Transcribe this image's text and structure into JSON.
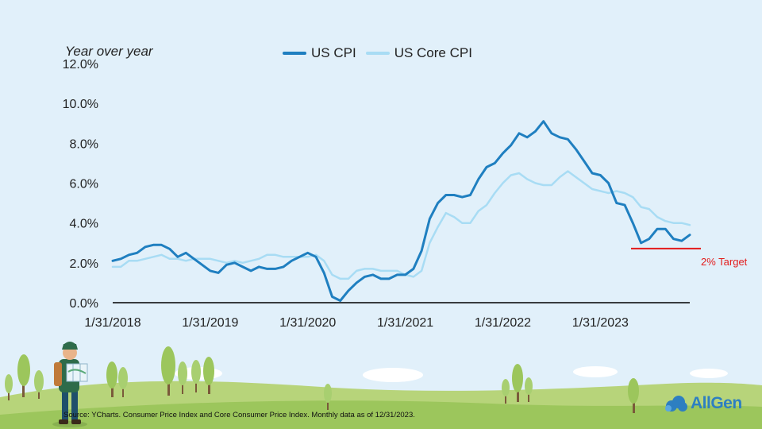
{
  "chart_data": {
    "type": "line",
    "y_axis_title": "Year over year",
    "ylim": [
      0,
      12
    ],
    "yticks": [
      "0.0%",
      "2.0%",
      "4.0%",
      "6.0%",
      "8.0%",
      "10.0%",
      "12.0%"
    ],
    "xticks": [
      "1/31/2018",
      "1/31/2019",
      "1/31/2020",
      "1/31/2021",
      "1/31/2022",
      "1/31/2023"
    ],
    "x_start": "2018-01",
    "x_end": "2023-12",
    "grid": false,
    "legend_position": "top",
    "series": [
      {
        "name": "US CPI",
        "color": "#1f7fc0",
        "values": [
          2.1,
          2.2,
          2.4,
          2.5,
          2.8,
          2.9,
          2.9,
          2.7,
          2.3,
          2.5,
          2.2,
          1.9,
          1.6,
          1.5,
          1.9,
          2.0,
          1.8,
          1.6,
          1.8,
          1.7,
          1.7,
          1.8,
          2.1,
          2.3,
          2.5,
          2.3,
          1.5,
          0.3,
          0.1,
          0.6,
          1.0,
          1.3,
          1.4,
          1.2,
          1.2,
          1.4,
          1.4,
          1.7,
          2.6,
          4.2,
          5.0,
          5.4,
          5.4,
          5.3,
          5.4,
          6.2,
          6.8,
          7.0,
          7.5,
          7.9,
          8.5,
          8.3,
          8.6,
          9.1,
          8.5,
          8.3,
          8.2,
          7.7,
          7.1,
          6.5,
          6.4,
          6.0,
          5.0,
          4.9,
          4.0,
          3.0,
          3.2,
          3.7,
          3.7,
          3.2,
          3.1,
          3.4
        ]
      },
      {
        "name": "US Core CPI",
        "color": "#a8dcf4",
        "values": [
          1.8,
          1.8,
          2.1,
          2.1,
          2.2,
          2.3,
          2.4,
          2.2,
          2.2,
          2.1,
          2.2,
          2.2,
          2.2,
          2.1,
          2.0,
          2.1,
          2.0,
          2.1,
          2.2,
          2.4,
          2.4,
          2.3,
          2.3,
          2.3,
          2.3,
          2.4,
          2.1,
          1.4,
          1.2,
          1.2,
          1.6,
          1.7,
          1.7,
          1.6,
          1.6,
          1.6,
          1.4,
          1.3,
          1.6,
          3.0,
          3.8,
          4.5,
          4.3,
          4.0,
          4.0,
          4.6,
          4.9,
          5.5,
          6.0,
          6.4,
          6.5,
          6.2,
          6.0,
          5.9,
          5.9,
          6.3,
          6.6,
          6.3,
          6.0,
          5.7,
          5.6,
          5.5,
          5.6,
          5.5,
          5.3,
          4.8,
          4.7,
          4.3,
          4.1,
          4.0,
          4.0,
          3.9
        ]
      }
    ],
    "annotations": [
      {
        "text": "2% Target",
        "value": 2.0,
        "color": "#e31b1b"
      }
    ]
  },
  "source_note": "Source: YCharts. Consumer Price Index and Core Consumer Price Index. Monthly data as of 12/31/2023.",
  "logo_text": "AllGen"
}
